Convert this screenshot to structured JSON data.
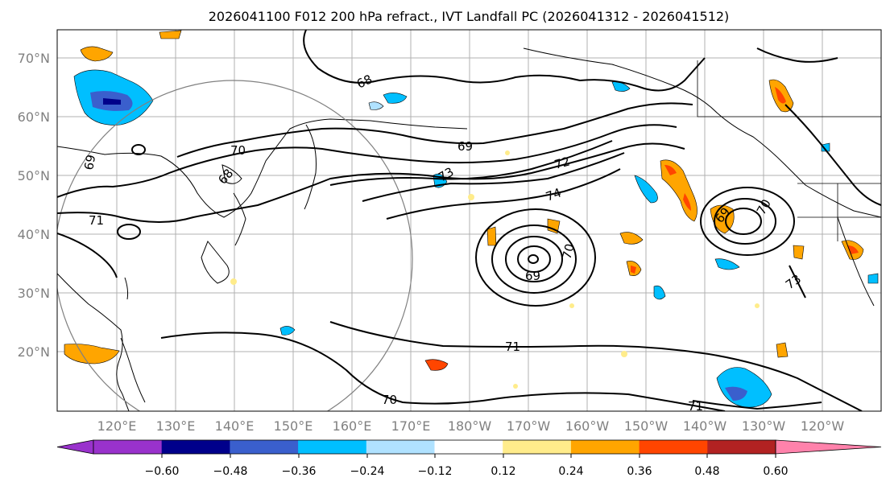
{
  "title": "2026041100 F012 200 hPa refract., IVT Landfall PC (2026041312 - 2026041512)",
  "latitude_labels": [
    "70°N",
    "60°N",
    "50°N",
    "40°N",
    "30°N",
    "20°N"
  ],
  "longitude_labels": [
    "120°E",
    "130°E",
    "140°E",
    "150°E",
    "160°E",
    "170°E",
    "180°W",
    "170°W",
    "160°W",
    "150°W",
    "140°W",
    "130°W",
    "120°W"
  ],
  "contour_labels": [
    "68",
    "69",
    "70",
    "71",
    "72",
    "73",
    "74",
    "69",
    "70",
    "71",
    "73",
    "69",
    "70",
    "71",
    "68",
    "69",
    "70"
  ],
  "colorbar": {
    "tick_labels": [
      "−0.60",
      "−0.48",
      "−0.36",
      "−0.24",
      "−0.12",
      "0.12",
      "0.24",
      "0.36",
      "0.48",
      "0.60"
    ],
    "colors": [
      "#9932cc",
      "#00008b",
      "#3a5fcd",
      "#00bfff",
      "#b0e2ff",
      "#ffffff",
      "#ffec8b",
      "#ffa500",
      "#ff4500",
      "#b22222",
      "#ff82ab",
      "#ff82ab"
    ]
  },
  "shading_colors": {
    "dark_blue": "#3a5fcd",
    "blue": "#00bfff",
    "light_blue": "#b0e2ff",
    "yellow": "#ffec8b",
    "orange": "#ffa500",
    "red": "#ff4500",
    "dark_red": "#b22222"
  }
}
